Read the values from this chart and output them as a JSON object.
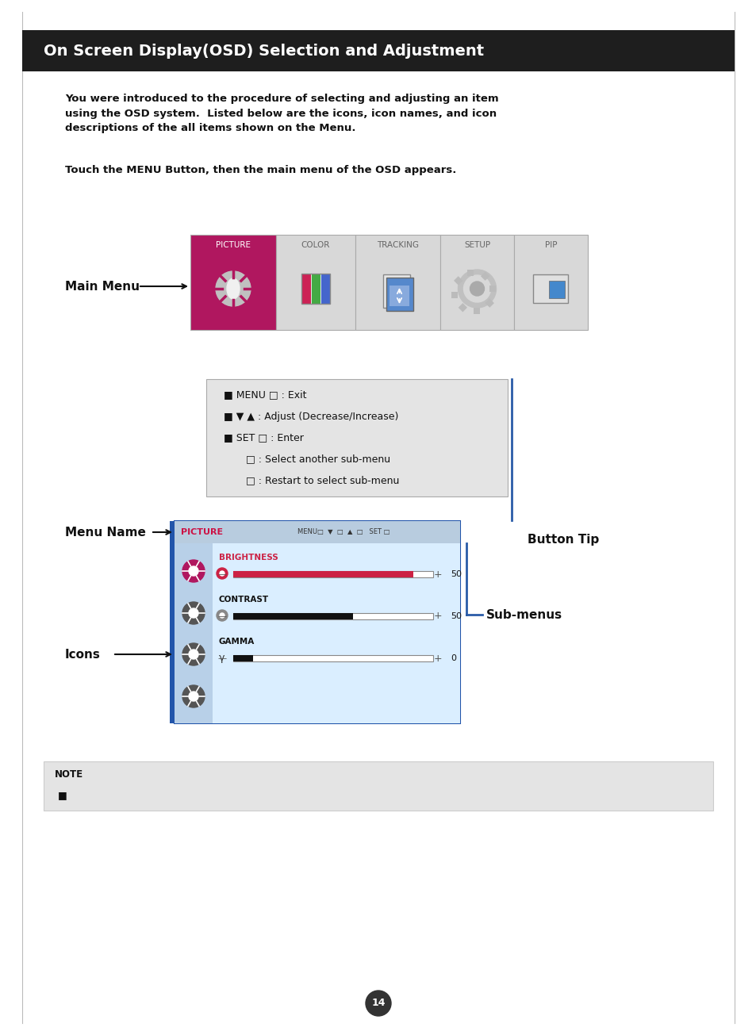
{
  "title": "On Screen Display(OSD) Selection and Adjustment",
  "title_bg": "#1e1e1e",
  "title_color": "#ffffff",
  "page_bg": "#ffffff",
  "body_text1": "You were introduced to the procedure of selecting and adjusting an item\nusing the OSD system.  Listed below are the icons, icon names, and icon\ndescriptions of the all items shown on the Menu.",
  "body_text2": "Touch the MENU Button, then the main menu of the OSD appears.",
  "main_menu_label": "Main Menu",
  "menu_tabs": [
    "PICTURE",
    "COLOR",
    "TRACKING",
    "SETUP",
    "PIP"
  ],
  "picture_tab_color": "#b0175f",
  "other_tab_color": "#d8d8d8",
  "button_tip_label": "Button Tip",
  "menu_name_label": "Menu Name",
  "icons_label": "Icons",
  "submenus_label": "Sub-menus",
  "note_text": "NOTE",
  "page_number": "14",
  "connector_color": "#2a5ca8",
  "label_fontsize": 11,
  "body_fontsize": 9.5
}
